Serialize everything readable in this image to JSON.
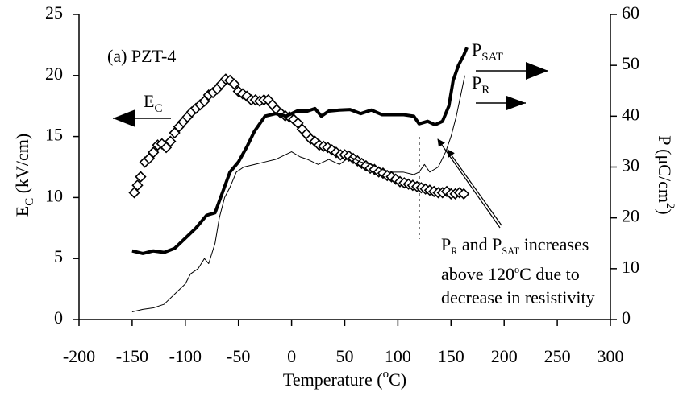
{
  "chart_data": {
    "type": "line",
    "title": "(a) PZT-4",
    "xlabel": [
      "Temperature (",
      {
        "sup": "o"
      },
      "C)"
    ],
    "ylabel": [
      "E",
      {
        "sub": "C"
      },
      " (kV/cm)"
    ],
    "y2label": [
      "P (μC/cm",
      {
        "sup": "2"
      },
      ")"
    ],
    "xlim": [
      -200,
      300
    ],
    "xticks": [
      -200,
      -150,
      -100,
      -50,
      0,
      50,
      100,
      150,
      200,
      250,
      300
    ],
    "ylim": [
      0,
      25
    ],
    "yticks": [
      0,
      5,
      10,
      15,
      20,
      25
    ],
    "y2lim": [
      0,
      60
    ],
    "y2ticks": [
      0,
      10,
      20,
      30,
      40,
      50,
      60
    ],
    "vline_x": 120,
    "annotation": [
      [
        "P",
        {
          "sub": "R"
        },
        " and P",
        {
          "sub": "SAT"
        },
        " increases"
      ],
      [
        "above 120",
        {
          "sup": "o"
        },
        "C due to"
      ],
      [
        "decrease in resistivity"
      ]
    ],
    "series": [
      {
        "name": [
          "E",
          {
            "sub": "C"
          }
        ],
        "color": "#000000",
        "marker": "diamond",
        "axis": "y",
        "x": [
          -148,
          -145,
          -142,
          -138,
          -134,
          -130,
          -126,
          -122,
          -118,
          -114,
          -110,
          -106,
          -102,
          -98,
          -94,
          -90,
          -86,
          -82,
          -78,
          -74,
          -70,
          -66,
          -62,
          -58,
          -54,
          -50,
          -46,
          -42,
          -38,
          -34,
          -30,
          -26,
          -22,
          -18,
          -14,
          -10,
          -6,
          -2,
          2,
          6,
          10,
          14,
          18,
          22,
          26,
          30,
          34,
          38,
          42,
          46,
          50,
          54,
          58,
          62,
          66,
          70,
          74,
          78,
          82,
          86,
          90,
          94,
          98,
          102,
          106,
          110,
          114,
          118,
          122,
          126,
          130,
          134,
          138,
          142,
          146,
          150,
          154,
          158,
          162
        ],
        "values": [
          10.4,
          11,
          11.7,
          12.9,
          13.2,
          13.7,
          14.3,
          14.4,
          14.1,
          14.6,
          15.3,
          15.8,
          16.2,
          16.6,
          17,
          17.3,
          17.6,
          17.9,
          18.4,
          18.6,
          18.9,
          19.3,
          19.7,
          19.6,
          19.3,
          18.7,
          18.5,
          18.3,
          18,
          18,
          17.9,
          18,
          18,
          17.6,
          17.2,
          16.9,
          16.7,
          16.6,
          16.4,
          16.1,
          15.6,
          15.2,
          14.8,
          14.6,
          14.3,
          14.2,
          14.1,
          13.9,
          13.7,
          13.5,
          13.5,
          13.4,
          13.2,
          13,
          12.8,
          12.6,
          12.4,
          12.3,
          12.1,
          12,
          11.8,
          11.7,
          11.5,
          11.3,
          11.2,
          11.1,
          11,
          10.9,
          10.8,
          10.7,
          10.6,
          10.5,
          10.4,
          10.4,
          10.5,
          10.3,
          10.3,
          10.4,
          10.3
        ]
      },
      {
        "name": [
          "P",
          {
            "sub": "SAT"
          }
        ],
        "color": "#000000",
        "width": 4,
        "axis": "y2",
        "x": [
          -150,
          -140,
          -130,
          -120,
          -110,
          -100,
          -90,
          -80,
          -72,
          -65,
          -58,
          -50,
          -42,
          -35,
          -25,
          -15,
          -5,
          5,
          15,
          22,
          28,
          35,
          45,
          55,
          65,
          75,
          85,
          95,
          105,
          115,
          120,
          128,
          135,
          142,
          148,
          152,
          157,
          162,
          165
        ],
        "values": [
          13.5,
          13,
          13.5,
          13.2,
          14,
          16,
          18,
          20.5,
          21,
          25,
          29,
          31,
          34,
          37,
          40,
          40.5,
          40,
          41,
          41,
          41.5,
          40,
          41,
          41.2,
          41.3,
          40.5,
          41.2,
          40.3,
          40.3,
          40.3,
          40,
          38.5,
          39,
          38.3,
          39,
          42,
          47,
          50,
          52,
          53.5
        ]
      },
      {
        "name": [
          "P",
          {
            "sub": "R"
          }
        ],
        "color": "#000000",
        "width": 1,
        "axis": "y2",
        "x": [
          -150,
          -140,
          -130,
          -120,
          -110,
          -100,
          -95,
          -88,
          -82,
          -78,
          -72,
          -68,
          -63,
          -58,
          -52,
          -45,
          -35,
          -25,
          -15,
          -5,
          0,
          8,
          15,
          25,
          35,
          45,
          55,
          65,
          75,
          85,
          95,
          105,
          115,
          120,
          125,
          130,
          138,
          145,
          150,
          155,
          160,
          163
        ],
        "values": [
          1.5,
          2,
          2.3,
          3,
          5,
          7,
          9,
          10,
          12,
          11,
          15,
          20,
          24,
          26,
          29,
          30,
          30.5,
          31,
          31.5,
          32.5,
          33,
          32,
          31.5,
          30.5,
          31.5,
          30.5,
          32,
          31,
          30.5,
          29.5,
          29,
          29,
          28.5,
          29,
          30.5,
          29,
          30,
          33,
          36,
          40,
          45,
          48
        ]
      }
    ]
  }
}
